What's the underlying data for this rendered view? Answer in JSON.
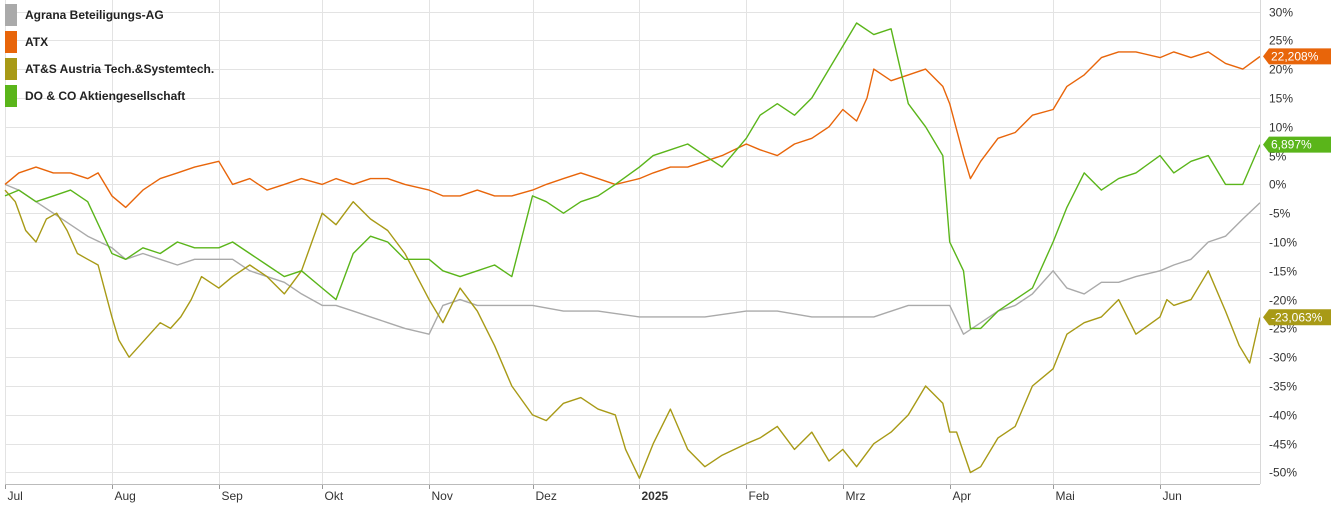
{
  "chart_data": {
    "type": "line",
    "title": "",
    "xlabel": "",
    "ylabel": "",
    "unit": "%",
    "ylim": [
      -52,
      32
    ],
    "yticks": [
      30,
      25,
      20,
      15,
      10,
      5,
      0,
      -5,
      -10,
      -15,
      -20,
      -25,
      -30,
      -35,
      -40,
      -45,
      -50
    ],
    "ytick_labels": [
      "30%",
      "25%",
      "20%",
      "15%",
      "10%",
      "5%",
      "0%",
      "-5%",
      "-10%",
      "-15%",
      "-20%",
      "-25%",
      "-30%",
      "-35%",
      "-40%",
      "-45%",
      "-50%"
    ],
    "x_start": "2024-07-01",
    "x_end": "2025-06-30",
    "xticks": [
      "2024-07-01",
      "2024-08-01",
      "2024-09-01",
      "2024-10-01",
      "2024-11-01",
      "2024-12-01",
      "2025-01-01",
      "2025-02-01",
      "2025-03-01",
      "2025-04-01",
      "2025-05-01",
      "2025-06-01"
    ],
    "xtick_labels": [
      "Jul",
      "Aug",
      "Sep",
      "Okt",
      "Nov",
      "Dez",
      "2025",
      "Feb",
      "Mrz",
      "Apr",
      "Mai",
      "Jun"
    ],
    "xtick_bold": [
      false,
      false,
      false,
      false,
      false,
      false,
      true,
      false,
      false,
      false,
      false,
      false
    ],
    "grid": true,
    "legend_position": "top-left",
    "series": [
      {
        "name": "Agrana Beteiligungs-AG",
        "color": "#aaaaaa",
        "x": [
          "2024-07-01",
          "2024-07-05",
          "2024-07-10",
          "2024-07-15",
          "2024-07-20",
          "2024-07-25",
          "2024-08-01",
          "2024-08-05",
          "2024-08-10",
          "2024-08-15",
          "2024-08-20",
          "2024-08-25",
          "2024-09-01",
          "2024-09-05",
          "2024-09-10",
          "2024-09-15",
          "2024-09-20",
          "2024-09-25",
          "2024-10-01",
          "2024-10-05",
          "2024-10-10",
          "2024-10-15",
          "2024-10-20",
          "2024-10-25",
          "2024-11-01",
          "2024-11-05",
          "2024-11-10",
          "2024-11-15",
          "2024-11-20",
          "2024-11-25",
          "2024-12-01",
          "2024-12-10",
          "2024-12-20",
          "2025-01-01",
          "2025-01-10",
          "2025-01-20",
          "2025-02-01",
          "2025-02-10",
          "2025-02-20",
          "2025-03-01",
          "2025-03-10",
          "2025-03-20",
          "2025-04-01",
          "2025-04-05",
          "2025-04-10",
          "2025-04-15",
          "2025-04-20",
          "2025-04-25",
          "2025-05-01",
          "2025-05-05",
          "2025-05-10",
          "2025-05-15",
          "2025-05-20",
          "2025-05-25",
          "2025-06-01",
          "2025-06-05",
          "2025-06-10",
          "2025-06-15",
          "2025-06-20",
          "2025-06-25",
          "2025-06-30"
        ],
        "values": [
          0,
          -1,
          -3,
          -5,
          -7,
          -9,
          -11,
          -13,
          -12,
          -13,
          -14,
          -13,
          -13,
          -13,
          -15,
          -16,
          -17,
          -19,
          -21,
          -21,
          -22,
          -23,
          -24,
          -25,
          -26,
          -21,
          -20,
          -21,
          -21,
          -21,
          -21,
          -22,
          -22,
          -23,
          -23,
          -23,
          -22,
          -22,
          -23,
          -23,
          -23,
          -21,
          -21,
          -26,
          -24,
          -22,
          -21,
          -19,
          -15,
          -18,
          -19,
          -17,
          -17,
          -16,
          -15,
          -14,
          -13,
          -10,
          -9,
          -6,
          -3.2
        ]
      },
      {
        "name": "ATX",
        "color": "#e8650a",
        "x": [
          "2024-07-01",
          "2024-07-05",
          "2024-07-10",
          "2024-07-15",
          "2024-07-20",
          "2024-07-25",
          "2024-07-28",
          "2024-08-01",
          "2024-08-05",
          "2024-08-10",
          "2024-08-15",
          "2024-08-20",
          "2024-08-25",
          "2024-09-01",
          "2024-09-05",
          "2024-09-10",
          "2024-09-15",
          "2024-09-20",
          "2024-09-25",
          "2024-10-01",
          "2024-10-05",
          "2024-10-10",
          "2024-10-15",
          "2024-10-20",
          "2024-10-25",
          "2024-11-01",
          "2024-11-05",
          "2024-11-10",
          "2024-11-15",
          "2024-11-20",
          "2024-11-25",
          "2024-12-01",
          "2024-12-05",
          "2024-12-10",
          "2024-12-15",
          "2024-12-20",
          "2024-12-25",
          "2025-01-01",
          "2025-01-05",
          "2025-01-10",
          "2025-01-15",
          "2025-01-20",
          "2025-01-25",
          "2025-02-01",
          "2025-02-05",
          "2025-02-10",
          "2025-02-15",
          "2025-02-20",
          "2025-02-25",
          "2025-03-01",
          "2025-03-05",
          "2025-03-08",
          "2025-03-10",
          "2025-03-15",
          "2025-03-20",
          "2025-03-25",
          "2025-03-30",
          "2025-04-01",
          "2025-04-05",
          "2025-04-07",
          "2025-04-10",
          "2025-04-15",
          "2025-04-20",
          "2025-04-25",
          "2025-05-01",
          "2025-05-05",
          "2025-05-10",
          "2025-05-15",
          "2025-05-20",
          "2025-05-25",
          "2025-06-01",
          "2025-06-05",
          "2025-06-10",
          "2025-06-15",
          "2025-06-20",
          "2025-06-25",
          "2025-06-30"
        ],
        "values": [
          0,
          2,
          3,
          2,
          2,
          1,
          2,
          -2,
          -4,
          -1,
          1,
          2,
          3,
          4,
          0,
          1,
          -1,
          0,
          1,
          0,
          1,
          0,
          1,
          1,
          0,
          -1,
          -2,
          -2,
          -1,
          -2,
          -2,
          -1,
          0,
          1,
          2,
          1,
          0,
          1,
          2,
          3,
          3,
          4,
          5,
          7,
          6,
          5,
          7,
          8,
          10,
          13,
          11,
          15,
          20,
          18,
          19,
          20,
          17,
          14,
          5,
          1,
          4,
          8,
          9,
          12,
          13,
          17,
          19,
          22,
          23,
          23,
          22,
          23,
          22,
          23,
          21,
          20,
          22.2
        ]
      },
      {
        "name": "AT&S Austria Tech.&Systemtech.",
        "color": "#a89a16",
        "x": [
          "2024-07-01",
          "2024-07-04",
          "2024-07-07",
          "2024-07-10",
          "2024-07-13",
          "2024-07-16",
          "2024-07-19",
          "2024-07-22",
          "2024-07-25",
          "2024-07-28",
          "2024-08-01",
          "2024-08-03",
          "2024-08-06",
          "2024-08-09",
          "2024-08-12",
          "2024-08-15",
          "2024-08-18",
          "2024-08-21",
          "2024-08-24",
          "2024-08-27",
          "2024-09-01",
          "2024-09-05",
          "2024-09-10",
          "2024-09-15",
          "2024-09-20",
          "2024-09-25",
          "2024-10-01",
          "2024-10-05",
          "2024-10-10",
          "2024-10-15",
          "2024-10-20",
          "2024-10-25",
          "2024-11-01",
          "2024-11-05",
          "2024-11-10",
          "2024-11-15",
          "2024-11-20",
          "2024-11-25",
          "2024-12-01",
          "2024-12-05",
          "2024-12-10",
          "2024-12-15",
          "2024-12-20",
          "2024-12-25",
          "2024-12-28",
          "2025-01-01",
          "2025-01-05",
          "2025-01-10",
          "2025-01-15",
          "2025-01-20",
          "2025-01-25",
          "2025-02-01",
          "2025-02-05",
          "2025-02-10",
          "2025-02-15",
          "2025-02-20",
          "2025-02-25",
          "2025-03-01",
          "2025-03-05",
          "2025-03-10",
          "2025-03-15",
          "2025-03-20",
          "2025-03-25",
          "2025-03-30",
          "2025-04-01",
          "2025-04-03",
          "2025-04-07",
          "2025-04-10",
          "2025-04-15",
          "2025-04-20",
          "2025-04-25",
          "2025-05-01",
          "2025-05-05",
          "2025-05-10",
          "2025-05-15",
          "2025-05-20",
          "2025-05-25",
          "2025-06-01",
          "2025-06-03",
          "2025-06-05",
          "2025-06-10",
          "2025-06-15",
          "2025-06-20",
          "2025-06-24",
          "2025-06-27",
          "2025-06-30"
        ],
        "values": [
          -1,
          -3,
          -8,
          -10,
          -6,
          -5,
          -8,
          -12,
          -13,
          -14,
          -23,
          -27,
          -30,
          -28,
          -26,
          -24,
          -25,
          -23,
          -20,
          -16,
          -18,
          -16,
          -14,
          -16,
          -19,
          -15,
          -5,
          -7,
          -3,
          -6,
          -8,
          -12,
          -20,
          -24,
          -18,
          -22,
          -28,
          -35,
          -40,
          -41,
          -38,
          -37,
          -39,
          -40,
          -46,
          -51,
          -45,
          -39,
          -46,
          -49,
          -47,
          -45,
          -44,
          -42,
          -46,
          -43,
          -48,
          -46,
          -49,
          -45,
          -43,
          -40,
          -35,
          -38,
          -43,
          -43,
          -50,
          -49,
          -44,
          -42,
          -35,
          -32,
          -26,
          -24,
          -23,
          -20,
          -26,
          -23,
          -20,
          -21,
          -20,
          -15,
          -22,
          -28,
          -31,
          -23.1
        ]
      },
      {
        "name": "DO & CO Aktiengesellschaft",
        "color": "#5ab51a",
        "x": [
          "2024-07-01",
          "2024-07-05",
          "2024-07-10",
          "2024-07-15",
          "2024-07-20",
          "2024-07-25",
          "2024-08-01",
          "2024-08-05",
          "2024-08-10",
          "2024-08-15",
          "2024-08-20",
          "2024-08-25",
          "2024-09-01",
          "2024-09-05",
          "2024-09-10",
          "2024-09-15",
          "2024-09-20",
          "2024-09-25",
          "2024-10-01",
          "2024-10-05",
          "2024-10-10",
          "2024-10-15",
          "2024-10-20",
          "2024-10-25",
          "2024-11-01",
          "2024-11-05",
          "2024-11-10",
          "2024-11-15",
          "2024-11-20",
          "2024-11-25",
          "2024-12-01",
          "2024-12-05",
          "2024-12-10",
          "2024-12-15",
          "2024-12-20",
          "2024-12-25",
          "2025-01-01",
          "2025-01-05",
          "2025-01-10",
          "2025-01-15",
          "2025-01-20",
          "2025-01-25",
          "2025-02-01",
          "2025-02-05",
          "2025-02-10",
          "2025-02-15",
          "2025-02-20",
          "2025-02-25",
          "2025-03-01",
          "2025-03-05",
          "2025-03-10",
          "2025-03-15",
          "2025-03-20",
          "2025-03-25",
          "2025-03-30",
          "2025-04-01",
          "2025-04-05",
          "2025-04-07",
          "2025-04-10",
          "2025-04-15",
          "2025-04-20",
          "2025-04-25",
          "2025-05-01",
          "2025-05-05",
          "2025-05-10",
          "2025-05-15",
          "2025-05-20",
          "2025-05-25",
          "2025-06-01",
          "2025-06-05",
          "2025-06-10",
          "2025-06-15",
          "2025-06-20",
          "2025-06-25",
          "2025-06-30"
        ],
        "values": [
          -2,
          -1,
          -3,
          -2,
          -1,
          -3,
          -12,
          -13,
          -11,
          -12,
          -10,
          -11,
          -11,
          -10,
          -12,
          -14,
          -16,
          -15,
          -18,
          -20,
          -12,
          -9,
          -10,
          -13,
          -13,
          -15,
          -16,
          -15,
          -14,
          -16,
          -2,
          -3,
          -5,
          -3,
          -2,
          0,
          3,
          5,
          6,
          7,
          5,
          3,
          8,
          12,
          14,
          12,
          15,
          20,
          24,
          28,
          26,
          27,
          14,
          10,
          5,
          -10,
          -15,
          -25,
          -25,
          -22,
          -20,
          -18,
          -10,
          -4,
          2,
          -1,
          1,
          2,
          5,
          2,
          4,
          5,
          0,
          0,
          6.9
        ]
      }
    ],
    "end_badges": [
      {
        "series": 1,
        "value": 22.208,
        "label": "22,208%"
      },
      {
        "series": 3,
        "value": 6.897,
        "label": "6,897%"
      },
      {
        "series": 2,
        "value": -23.063,
        "label": "-23,063%"
      }
    ]
  }
}
